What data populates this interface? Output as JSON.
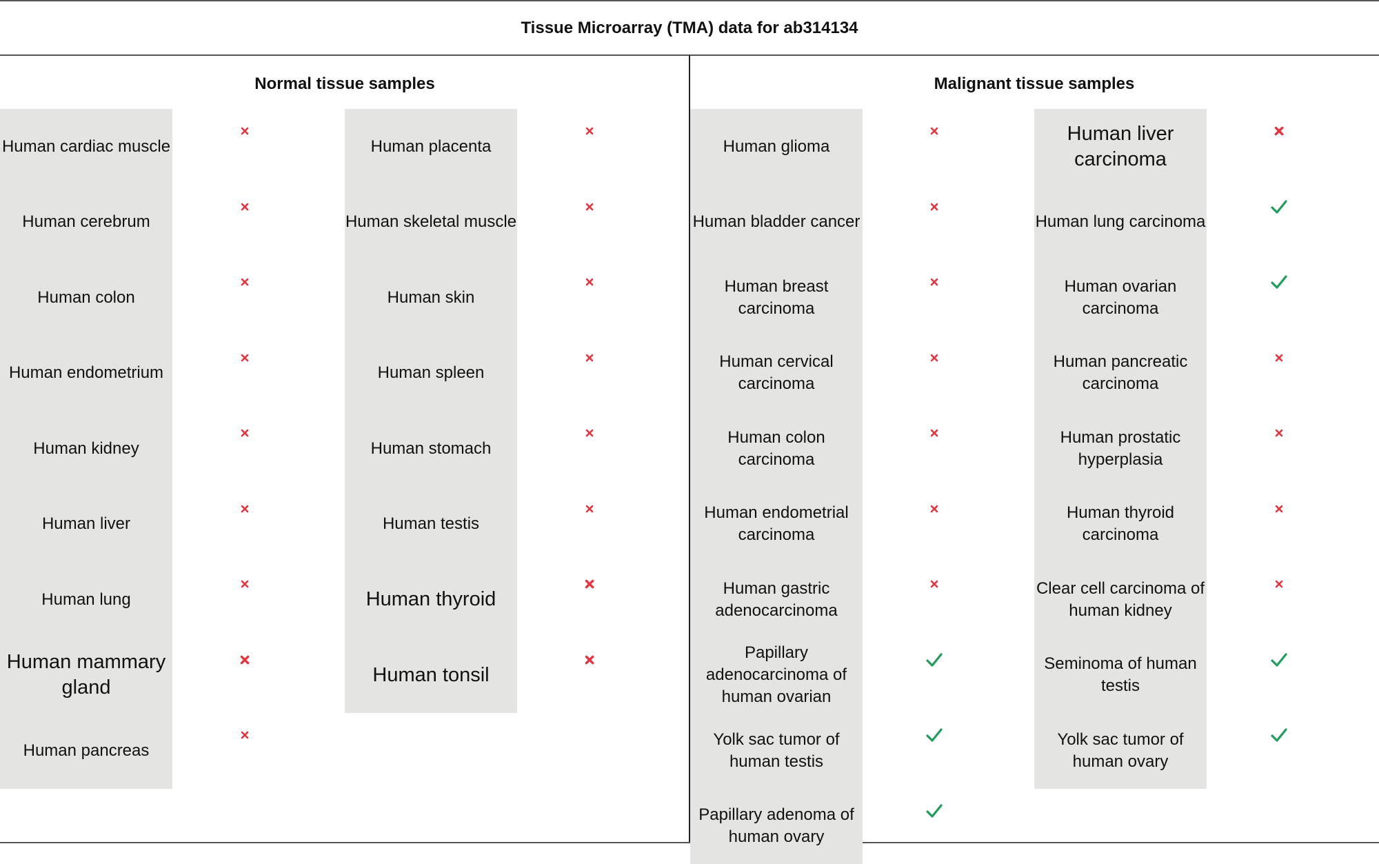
{
  "title": "Tissue Microarray (TMA) data for ab314134",
  "colors": {
    "negative": "#e8333f",
    "positive": "#1f9e5b",
    "panel": "#e4e4e3"
  },
  "sections": {
    "normal": {
      "header": "Normal tissue samples",
      "columns": [
        [
          {
            "label": "Human cardiac muscle",
            "result": "negative"
          },
          {
            "label": "Human cerebrum",
            "result": "negative"
          },
          {
            "label": "Human colon",
            "result": "negative"
          },
          {
            "label": "Human endometrium",
            "result": "negative"
          },
          {
            "label": "Human kidney",
            "result": "negative"
          },
          {
            "label": "Human liver",
            "result": "negative"
          },
          {
            "label": "Human lung",
            "result": "negative"
          },
          {
            "label": "Human mammary gland",
            "result": "negative"
          },
          {
            "label": "Human pancreas",
            "result": "negative"
          }
        ],
        [
          {
            "label": "Human placenta",
            "result": "negative"
          },
          {
            "label": "Human skeletal muscle",
            "result": "negative"
          },
          {
            "label": "Human skin",
            "result": "negative"
          },
          {
            "label": "Human spleen",
            "result": "negative"
          },
          {
            "label": "Human stomach",
            "result": "negative"
          },
          {
            "label": "Human testis",
            "result": "negative"
          },
          {
            "label": "Human thyroid",
            "result": "negative"
          },
          {
            "label": "Human tonsil",
            "result": "negative"
          }
        ]
      ]
    },
    "malignant": {
      "header": "Malignant tissue samples",
      "columns": [
        [
          {
            "label": "Human glioma",
            "result": "negative"
          },
          {
            "label": "Human bladder cancer",
            "result": "negative"
          },
          {
            "label": "Human breast carcinoma",
            "result": "negative"
          },
          {
            "label": "Human cervical carcinoma",
            "result": "negative"
          },
          {
            "label": "Human colon carcinoma",
            "result": "negative"
          },
          {
            "label": "Human endometrial carcinoma",
            "result": "negative"
          },
          {
            "label": "Human gastric adenocarcinoma",
            "result": "negative"
          },
          {
            "label": "Papillary adenocarcinoma of human ovarian",
            "result": "positive"
          },
          {
            "label": "Yolk sac tumor of human testis",
            "result": "positive"
          },
          {
            "label": "Papillary adenoma of human ovary",
            "result": "positive"
          }
        ],
        [
          {
            "label": "Human liver carcinoma",
            "result": "negative"
          },
          {
            "label": "Human lung carcinoma",
            "result": "positive"
          },
          {
            "label": "Human ovarian carcinoma",
            "result": "positive"
          },
          {
            "label": "Human pancreatic carcinoma",
            "result": "negative"
          },
          {
            "label": "Human prostatic hyperplasia",
            "result": "negative"
          },
          {
            "label": "Human thyroid carcinoma",
            "result": "negative"
          },
          {
            "label": "Clear cell carcinoma of human kidney",
            "result": "negative"
          },
          {
            "label": "Seminoma of human testis",
            "result": "positive"
          },
          {
            "label": "Yolk sac tumor of human ovary",
            "result": "positive"
          }
        ]
      ]
    }
  }
}
